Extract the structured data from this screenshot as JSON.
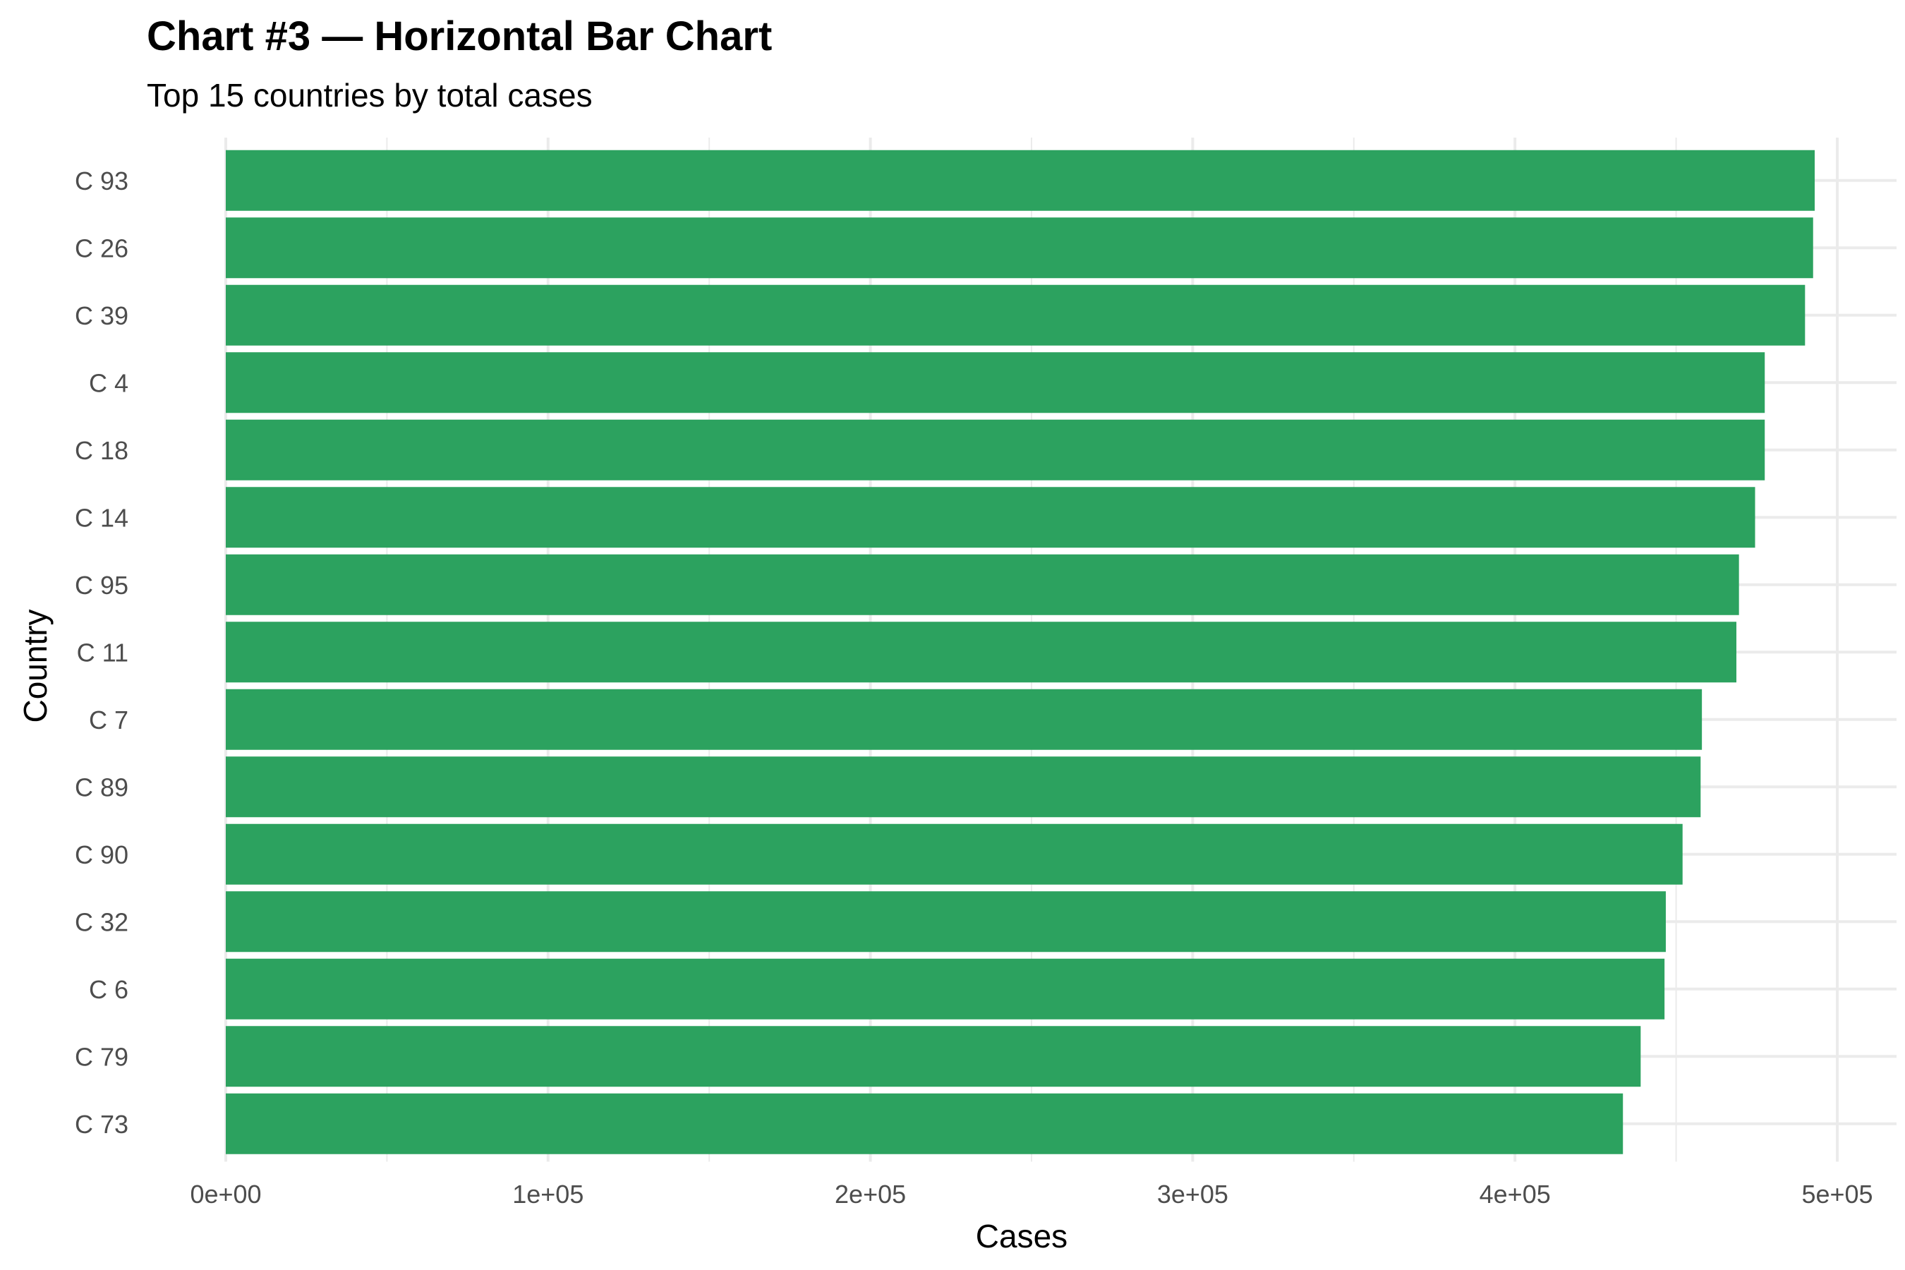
{
  "chart_data": {
    "type": "bar",
    "orientation": "horizontal",
    "title": "Chart #3 — Horizontal Bar Chart",
    "subtitle": "Top 15 countries by total cases",
    "xlabel": "Cases",
    "ylabel": "Country",
    "categories": [
      "C 93",
      "C 26",
      "C 39",
      "C 4",
      "C 18",
      "C 14",
      "C 95",
      "C 11",
      "C 7",
      "C 89",
      "C 90",
      "C 32",
      "C 6",
      "C 79",
      "C 73"
    ],
    "values": [
      493000,
      492500,
      490000,
      477500,
      477500,
      474500,
      469500,
      468700,
      458000,
      457600,
      452000,
      446800,
      446400,
      439000,
      433500
    ],
    "xlim": [
      0,
      500000
    ],
    "xticks": [
      0,
      100000,
      200000,
      300000,
      400000,
      500000
    ],
    "xtick_labels": [
      "0e+00",
      "1e+05",
      "2e+05",
      "3e+05",
      "4e+05",
      "5e+05"
    ],
    "bar_color": "#2ca25f",
    "grid": true
  }
}
